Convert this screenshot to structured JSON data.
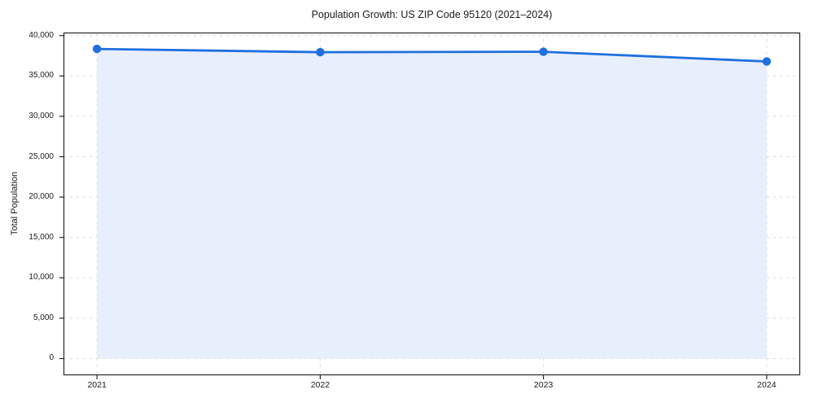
{
  "figure": {
    "title": "Population Growth: US ZIP Code 95120 (2021–2024)"
  },
  "chart_data": {
    "type": "area",
    "title": "Population Growth: US ZIP Code 95120 (2021–2024)",
    "xlabel": "",
    "ylabel": "Total Population",
    "x": [
      2021,
      2022,
      2023,
      2024
    ],
    "xtick_labels": [
      "2021",
      "2022",
      "2023",
      "2024"
    ],
    "series": [
      {
        "name": "Total Population",
        "values": [
          38350,
          37950,
          38000,
          36800
        ]
      }
    ],
    "fill_baseline": 0,
    "xlim": [
      2020.85,
      2024.15
    ],
    "ylim": [
      -2070,
      40375
    ],
    "yticks": [
      0,
      5000,
      10000,
      15000,
      20000,
      25000,
      30000,
      35000,
      40000
    ],
    "ytick_labels": [
      "0",
      "5,000",
      "10,000",
      "15,000",
      "20,000",
      "25,000",
      "30,000",
      "35,000",
      "40,000"
    ],
    "grid": {
      "visible": true,
      "style": "dashed",
      "axes": "both"
    },
    "legend": "none",
    "marker": "circle",
    "colors": {
      "line": "#1f6fe0",
      "marker": "#1f6fe0",
      "fill": "#e8effc",
      "grid": "#d9d9d9",
      "spine": "#262626",
      "tick": "#262626",
      "text": "#1a1a1a",
      "background": "#ffffff"
    }
  }
}
